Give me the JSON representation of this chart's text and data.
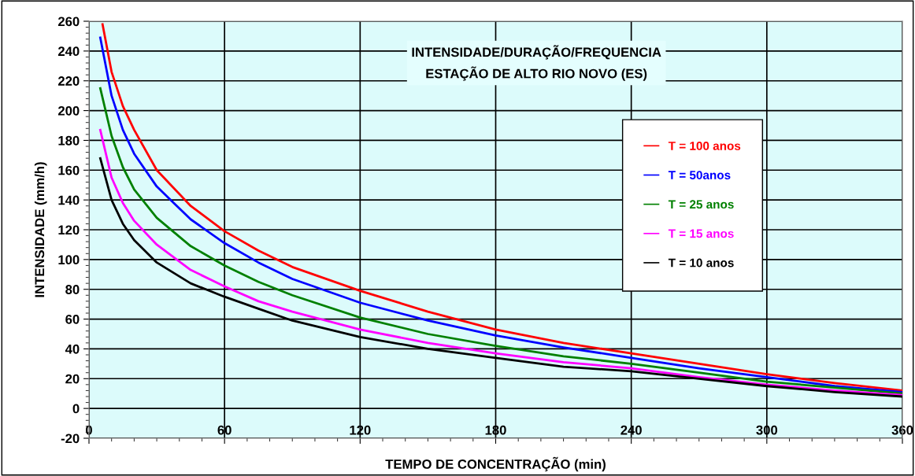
{
  "chart_data": {
    "type": "line",
    "title": "INTENSIDADE/DURAÇÃO/FREQUENCIA\nESTAÇÃO DE ALTO RIO NOVO (ES)",
    "xlabel": "TEMPO DE CONCENTRAÇÃO (min)",
    "ylabel": "INTENSIDADE (mm/h)",
    "x": [
      5,
      10,
      15,
      20,
      30,
      45,
      60,
      75,
      90,
      120,
      150,
      180,
      210,
      240,
      270,
      300,
      330,
      360
    ],
    "series": [
      {
        "name": "T = 100 anos",
        "color": "#ff0000",
        "x": [
          6,
          10,
          15,
          20,
          30,
          45,
          60,
          75,
          90,
          120,
          150,
          180,
          210,
          240,
          270,
          300,
          330,
          360
        ],
        "values": [
          258,
          226,
          203,
          187,
          160,
          136,
          119,
          106,
          95,
          79,
          65,
          53,
          44,
          37,
          30,
          23,
          17,
          12
        ]
      },
      {
        "name": "T = 50anos",
        "color": "#0000ff",
        "values": [
          249,
          210,
          187,
          171,
          149,
          127,
          111,
          98,
          87,
          71,
          59,
          49,
          41,
          34,
          27,
          21,
          15,
          11
        ]
      },
      {
        "name": "T = 25 anos",
        "color": "#008000",
        "values": [
          215,
          183,
          162,
          147,
          128,
          109,
          96,
          85,
          76,
          61,
          50,
          42,
          35,
          30,
          24,
          18,
          14,
          10
        ]
      },
      {
        "name": "T = 15 anos",
        "color": "#ff00ff",
        "values": [
          187,
          155,
          138,
          126,
          110,
          93,
          82,
          72,
          65,
          53,
          44,
          37,
          31,
          27,
          21,
          16,
          12,
          9
        ]
      },
      {
        "name": "T = 10 anos",
        "color": "#000000",
        "values": [
          168,
          140,
          124,
          113,
          98,
          84,
          75,
          67,
          59,
          48,
          40,
          34,
          28,
          25,
          20,
          15,
          11,
          8
        ]
      }
    ],
    "xlim": [
      0,
      360
    ],
    "xticks": [
      0,
      60,
      120,
      180,
      240,
      300,
      360
    ],
    "ylim": [
      -20,
      260
    ],
    "yticks": [
      -20,
      0,
      20,
      40,
      60,
      80,
      100,
      120,
      140,
      160,
      180,
      200,
      220,
      240,
      260
    ],
    "grid": true,
    "legend": "right",
    "marker": "none",
    "line_style": "solid"
  }
}
